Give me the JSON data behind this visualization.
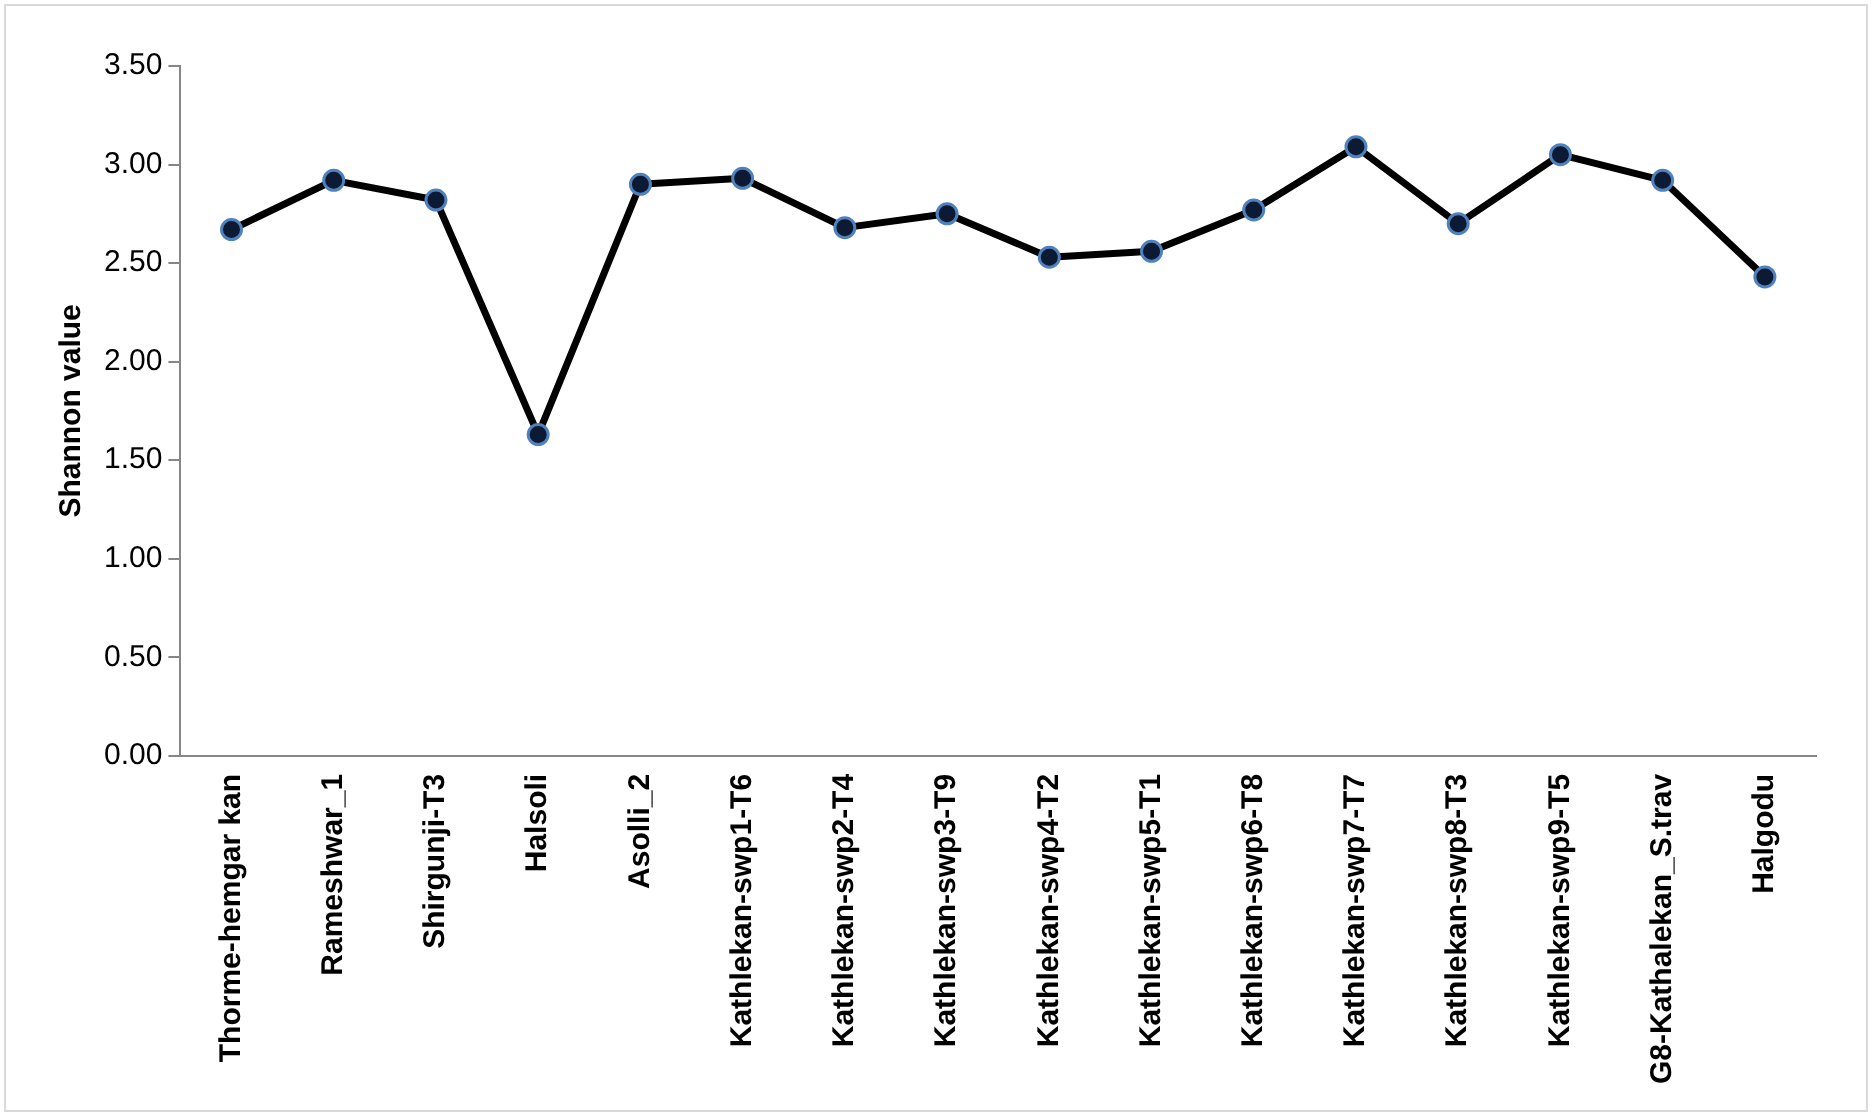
{
  "chart_data": {
    "type": "line",
    "ylabel": "Shannon value",
    "categories": [
      "Thorme-hemgar kan",
      "Rameshwar_1",
      "Shirgunji-T3",
      "Halsoli",
      "Asolli_2",
      "Kathlekan-swp1-T6",
      "Kathlekan-swp2-T4",
      "Kathlekan-swp3-T9",
      "Kathlekan-swp4-T2",
      "Kathlekan-swp5-T1",
      "Kathlekan-swp6-T8",
      "Kathlekan-swp7-T7",
      "Kathlekan-swp8-T3",
      "Kathlekan-swp9-T5",
      "G8-Kathalekan_S.trav",
      "Halgodu"
    ],
    "series": [
      {
        "color": "#000000",
        "values": [
          2.67,
          2.92,
          2.82,
          1.63,
          2.9,
          2.93,
          2.68,
          2.75,
          2.53,
          2.56,
          2.77,
          3.09,
          2.7,
          3.05,
          2.92,
          2.43
        ]
      }
    ],
    "ylim": [
      0,
      3.5
    ],
    "yticks": [
      {
        "value": 0,
        "label": "0.00"
      },
      {
        "value": 0.5,
        "label": "0.50"
      },
      {
        "value": 1,
        "label": "1.00"
      },
      {
        "value": 1.5,
        "label": "1.50"
      },
      {
        "value": 2,
        "label": "2.00"
      },
      {
        "value": 2.5,
        "label": "2.50"
      },
      {
        "value": 3,
        "label": "3.00"
      },
      {
        "value": 3.5,
        "label": "3.50"
      }
    ],
    "grid": false,
    "legend": false,
    "marker": "circle",
    "line_style": "solid"
  }
}
